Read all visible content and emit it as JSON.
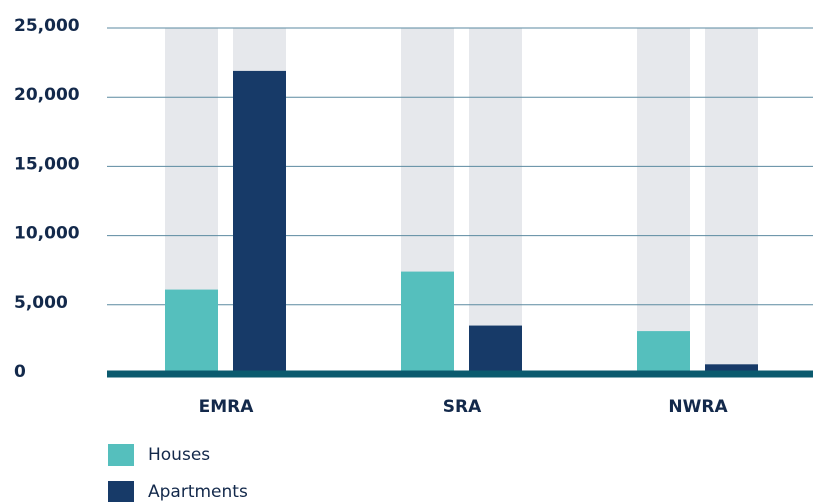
{
  "chart_data": {
    "type": "bar",
    "categories": [
      "EMRA",
      "SRA",
      "NWRA"
    ],
    "series": [
      {
        "name": "Houses",
        "color": "#55bfbd",
        "values": [
          6100,
          7400,
          3100
        ]
      },
      {
        "name": "Apartments",
        "color": "#173a68",
        "values": [
          21900,
          3500,
          700
        ]
      }
    ],
    "ylim": [
      0,
      25000
    ],
    "yticks": [
      0,
      {
        "value": 5000,
        "label": "5,000"
      },
      {
        "value": 10000,
        "label": "10,000"
      },
      {
        "value": 15000,
        "label": "15,000"
      },
      {
        "value": 20000,
        "label": "20,000"
      },
      {
        "value": 25000,
        "label": "25,000"
      }
    ],
    "grid": true,
    "legend": "bottom-left"
  }
}
